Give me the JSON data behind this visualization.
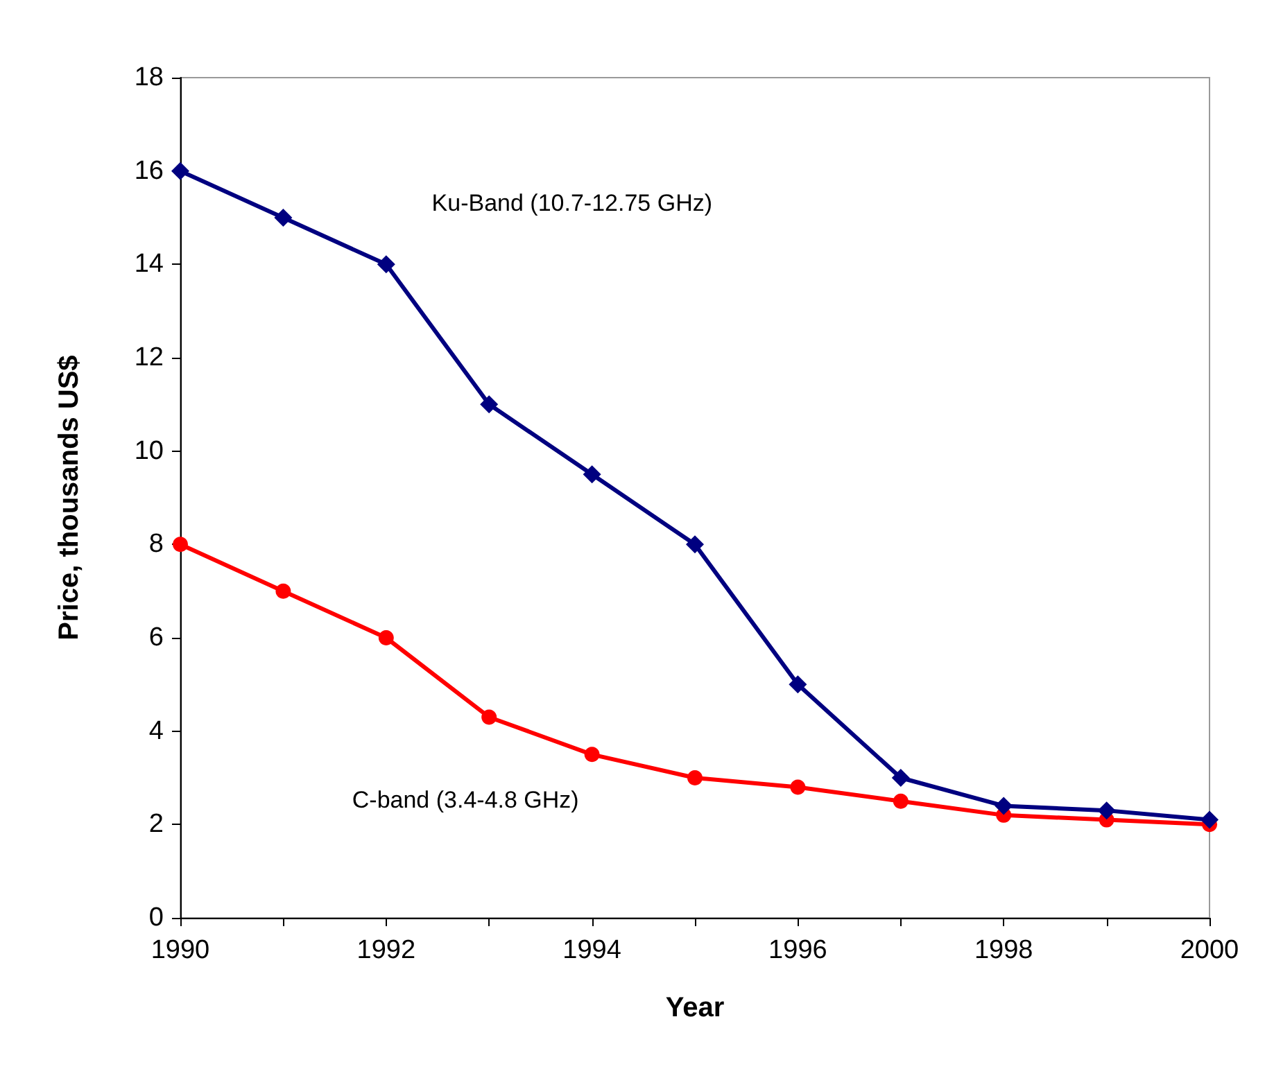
{
  "chart_data": {
    "type": "line",
    "xlabel": "Year",
    "ylabel": "Price, thousands US$",
    "x": [
      1990,
      1991,
      1992,
      1993,
      1994,
      1995,
      1996,
      1997,
      1998,
      1999,
      2000
    ],
    "series": [
      {
        "name": "Ku-Band (10.7-12.75 GHz)",
        "color": "#000080",
        "marker": "diamond",
        "values": [
          16,
          15,
          14,
          11,
          9.5,
          8,
          5,
          3,
          2.4,
          2.3,
          2.1
        ]
      },
      {
        "name": "C-band (3.4-4.8 GHz)",
        "color": "#ff0000",
        "marker": "circle",
        "values": [
          8,
          7,
          6,
          4.3,
          3.5,
          3,
          2.8,
          2.5,
          2.2,
          2.1,
          2
        ]
      }
    ],
    "xlim": [
      1990,
      2000
    ],
    "xticks": [
      1990,
      {
        "value": 1991,
        "label": null
      },
      1992,
      {
        "value": 1993,
        "label": null
      },
      1994,
      {
        "value": 1995,
        "label": null
      },
      1996,
      {
        "value": 1997,
        "label": null
      },
      1998,
      {
        "value": 1999,
        "label": null
      },
      2000
    ],
    "ylim": [
      0,
      18
    ],
    "yticks": [
      0,
      2,
      4,
      6,
      8,
      10,
      12,
      14,
      16,
      18
    ],
    "grid": false,
    "line_style": "solid"
  }
}
